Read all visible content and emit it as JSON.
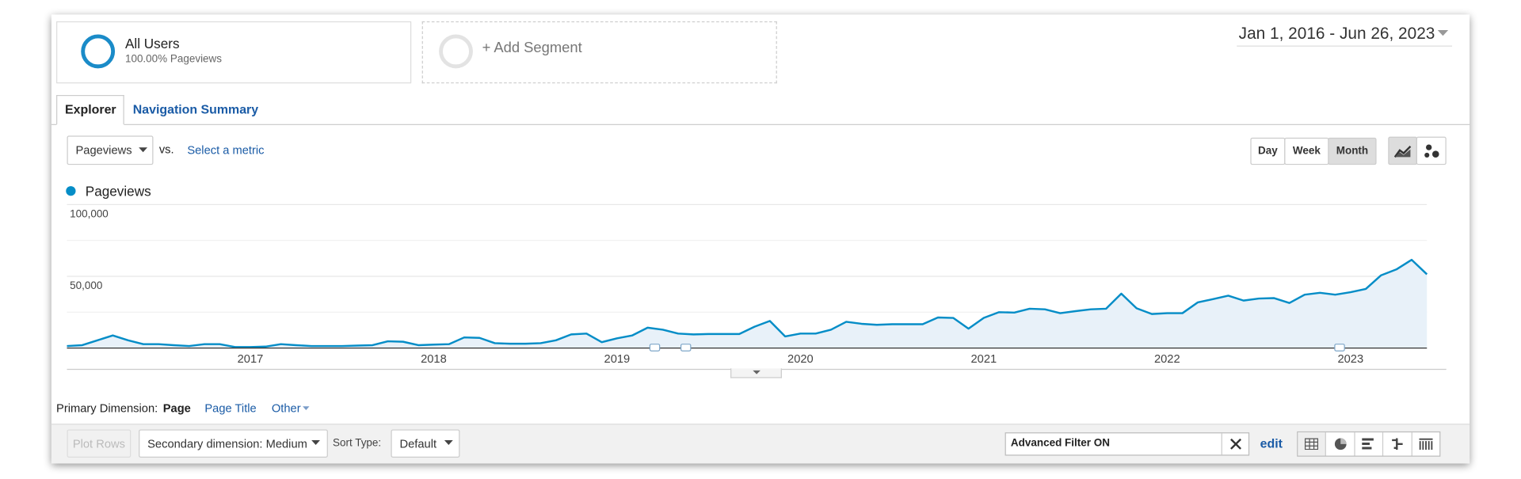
{
  "segments": [
    {
      "name": "All Users",
      "detail": "100.00% Pageviews"
    },
    {
      "name": "+ Add Segment"
    }
  ],
  "date_range": "Jan 1, 2016 - Jun 26, 2023",
  "tabs": [
    "Explorer",
    "Navigation Summary"
  ],
  "metric_selector": {
    "metric": "Pageviews",
    "vs": "vs.",
    "other": "Select a metric"
  },
  "granularity": [
    "Day",
    "Week",
    "Month"
  ],
  "primary_dimension": {
    "label": "Primary Dimension:",
    "options": [
      "Page",
      "Page Title",
      "Other"
    ]
  },
  "toolbar": {
    "plot_rows": "Plot Rows",
    "secondary_dimension": "Secondary dimension: Medium",
    "sort_label": "Sort Type:",
    "sort_value": "Default",
    "filter": "Advanced Filter ON",
    "edit": "edit"
  },
  "chart_data": {
    "type": "line",
    "categories": [
      null,
      null,
      null,
      null,
      null,
      null,
      null,
      null,
      null,
      null,
      null,
      null,
      "2017",
      null,
      null,
      null,
      null,
      null,
      null,
      null,
      null,
      null,
      null,
      null,
      "2018",
      null,
      null,
      null,
      null,
      null,
      null,
      null,
      null,
      null,
      null,
      null,
      "2019",
      null,
      null,
      null,
      null,
      null,
      null,
      null,
      null,
      null,
      null,
      null,
      "2020",
      null,
      null,
      null,
      null,
      null,
      null,
      null,
      null,
      null,
      null,
      null,
      "2021",
      null,
      null,
      null,
      null,
      null,
      null,
      null,
      null,
      null,
      null,
      null,
      "2022",
      null,
      null,
      null,
      null,
      null,
      null,
      null,
      null,
      null,
      null,
      null,
      "2023",
      null,
      null,
      null,
      null,
      null
    ],
    "series": [
      {
        "name": "Pageviews",
        "color": "#058dc7",
        "values": [
          1400,
          2000,
          5400,
          8800,
          5400,
          2700,
          2700,
          2000,
          1400,
          2700,
          2700,
          700,
          700,
          1000,
          2700,
          2000,
          1400,
          1400,
          1400,
          1700,
          2000,
          4700,
          4400,
          2000,
          2400,
          2700,
          7400,
          7100,
          3400,
          3000,
          3000,
          3400,
          5400,
          9500,
          10100,
          4100,
          6800,
          8800,
          14200,
          12800,
          10100,
          9500,
          9800,
          9800,
          9800,
          14900,
          18900,
          8100,
          10100,
          10100,
          12800,
          18300,
          16900,
          16200,
          16600,
          16600,
          16600,
          21300,
          21000,
          13500,
          21000,
          25000,
          24700,
          27400,
          27000,
          24300,
          25700,
          27000,
          27400,
          37900,
          27700,
          23700,
          24300,
          24300,
          31800,
          34100,
          36500,
          33100,
          34500,
          34800,
          31400,
          37200,
          38500,
          37200,
          38900,
          41200,
          50700,
          54800,
          61500,
          51400
        ]
      }
    ],
    "ylim": [
      0,
      100000
    ],
    "yticks": [
      {
        "value": 50000,
        "label": "50,000"
      },
      {
        "value": 100000,
        "label": "100,000"
      }
    ],
    "minor_grid": [
      25000,
      75000
    ],
    "grid": true
  }
}
